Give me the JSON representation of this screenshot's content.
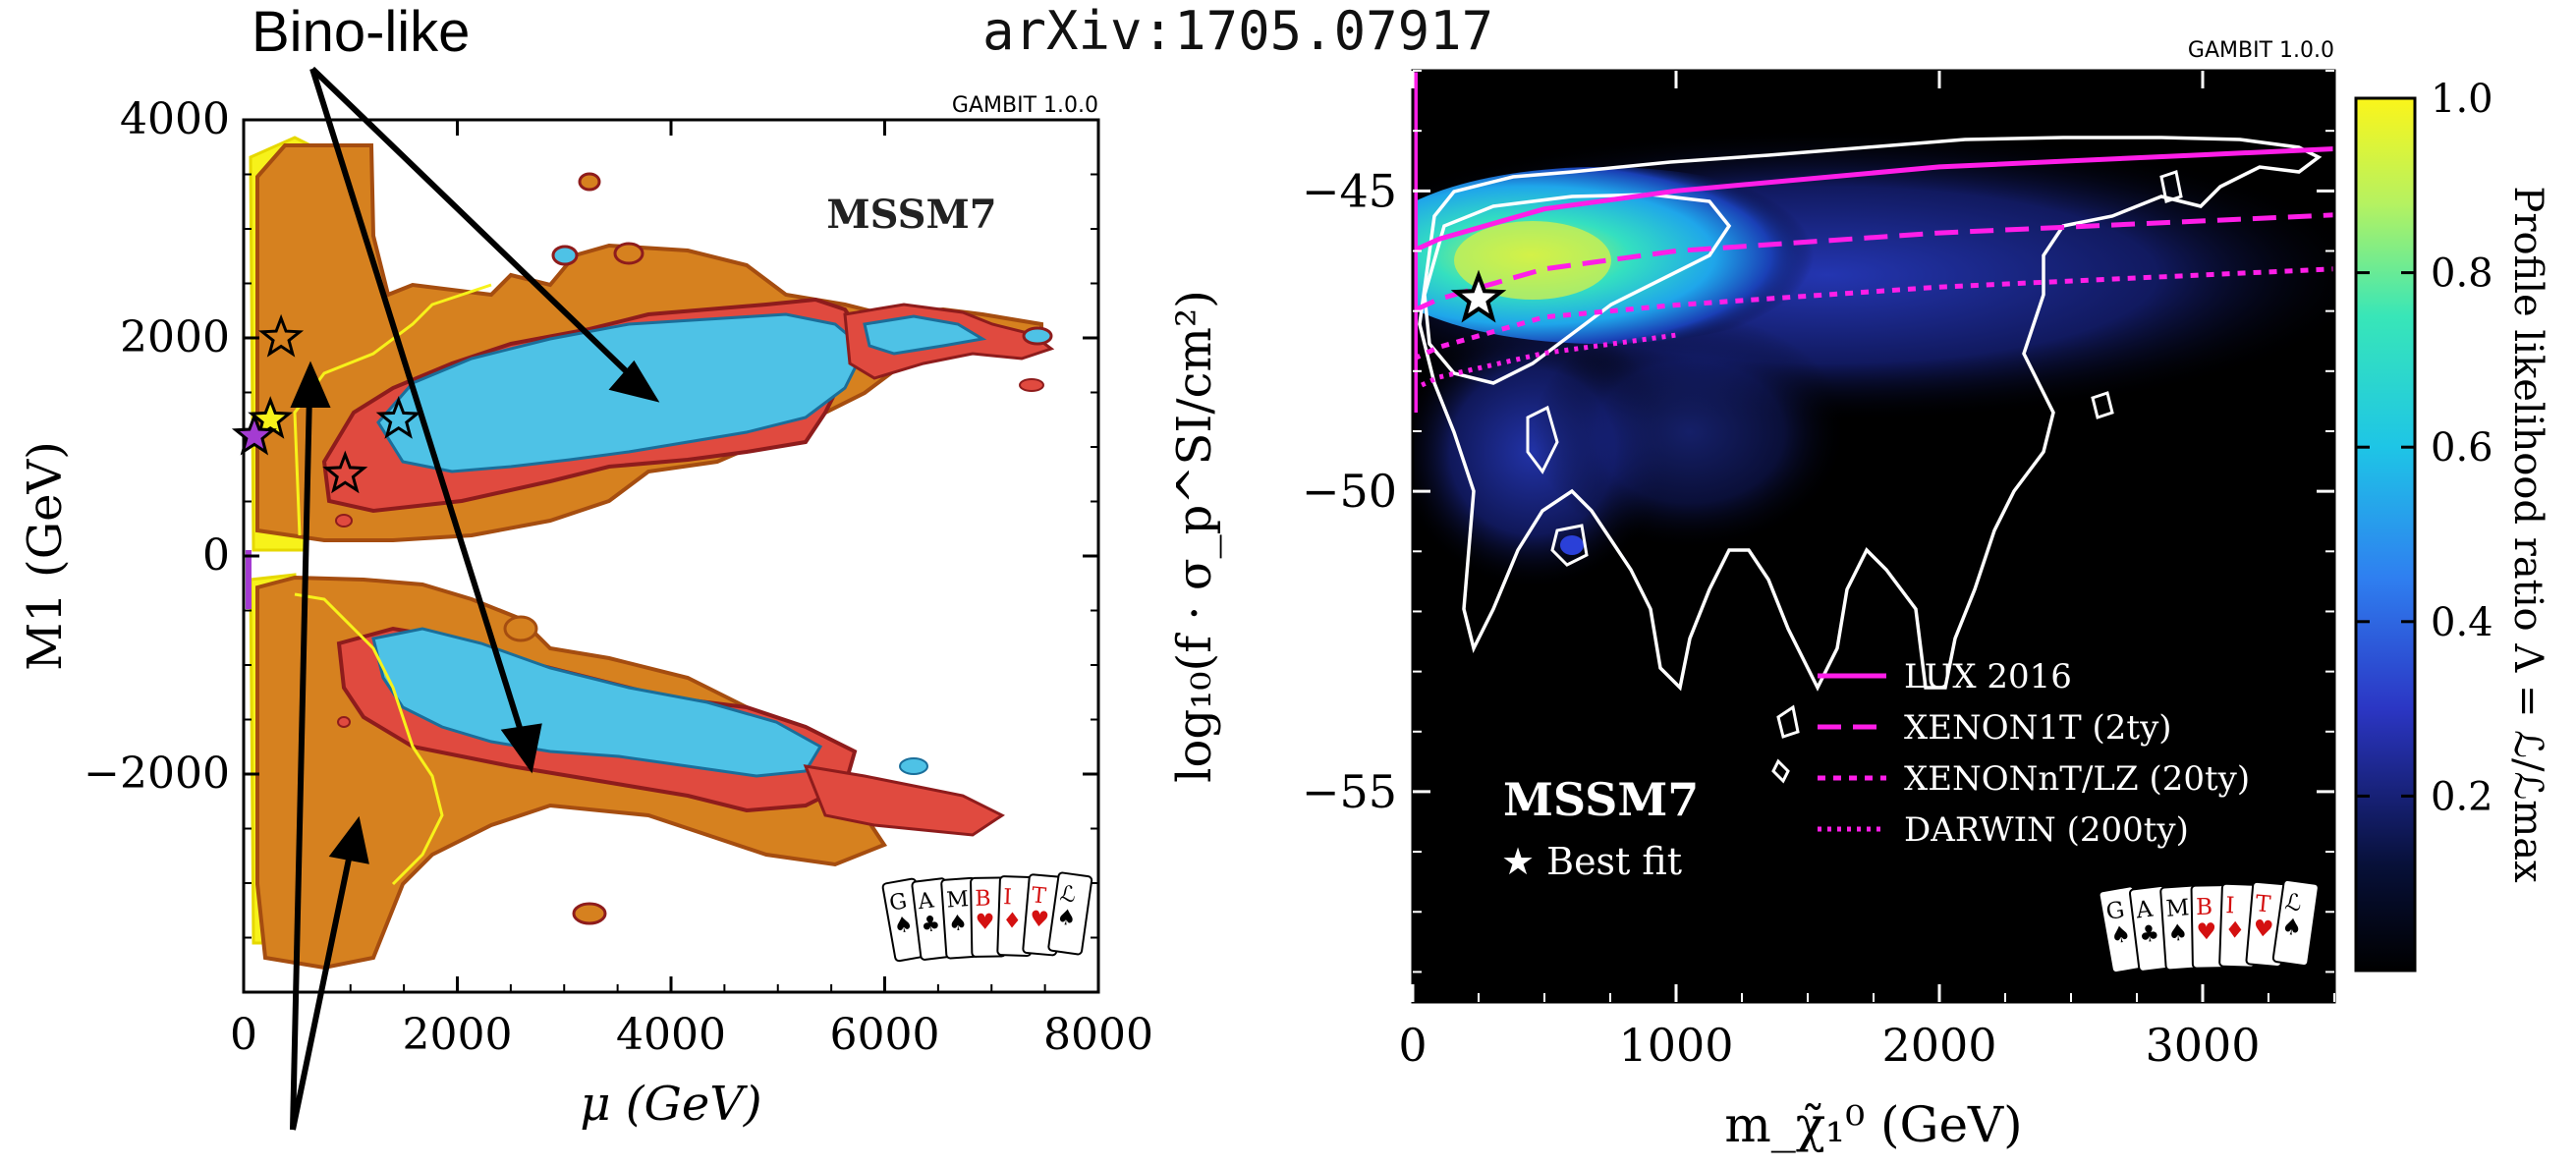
{
  "header": {
    "arxiv": "arXiv:1705.07917",
    "bino_label": "Bino-like"
  },
  "chart_data": [
    {
      "type": "scatter",
      "panel": "left",
      "watermark": "GAMBIT 1.0.0",
      "model_label": "MSSM7",
      "xlabel": "μ (GeV)",
      "ylabel": "M1 (GeV)",
      "xlim": [
        0,
        8000
      ],
      "ylim": [
        -4000,
        4000
      ],
      "xticks": [
        "0",
        "2000",
        "4000",
        "6000",
        "8000"
      ],
      "yticks": [
        "4000",
        "2000",
        "0",
        "−2000"
      ],
      "region_colors": {
        "yellow": "#f7f21a",
        "orange": "#d6811f",
        "red": "#e04a3f",
        "cyan": "#4ec2e6",
        "magenta": "#a43bd2"
      },
      "best_fit_points": [
        {
          "x": 350,
          "y": 2000,
          "color": "#d6811f"
        },
        {
          "x": 250,
          "y": 1250,
          "color": "#f7f21a"
        },
        {
          "x": 1450,
          "y": 1250,
          "color": "#4ec2e6"
        },
        {
          "x": 950,
          "y": 750,
          "color": "#e04a3f"
        },
        {
          "x": 100,
          "y": 1100,
          "color": "#a43bd2"
        }
      ]
    },
    {
      "type": "heatmap",
      "panel": "right",
      "watermark": "GAMBIT 1.0.0",
      "model_label": "MSSM7",
      "best_fit_label": "★ Best fit",
      "xlabel": "m_χ̃₁⁰ (GeV)",
      "ylabel": "log₁₀(f · σ_p^SI/cm²)",
      "xlim": [
        0,
        3500
      ],
      "ylim": [
        -58.5,
        -43
      ],
      "xticks": [
        "0",
        "1000",
        "2000",
        "3000"
      ],
      "yticks": [
        "−45",
        "−50",
        "−55"
      ],
      "best_fit": {
        "x": 250,
        "y": -46.8
      },
      "series": [
        {
          "name": "LUX 2016",
          "style": "solid",
          "color": "#ff1ee8",
          "x": [
            0,
            100,
            500,
            1000,
            2000,
            3000,
            3500
          ],
          "y": [
            -46.0,
            -45.8,
            -45.3,
            -45.0,
            -44.6,
            -44.4,
            -44.3
          ]
        },
        {
          "name": "XENON1T (2ty)",
          "style": "dashed",
          "color": "#ff1ee8",
          "x": [
            0,
            100,
            500,
            1000,
            2000,
            3000,
            3500
          ],
          "y": [
            -47.0,
            -46.8,
            -46.3,
            -46.0,
            -45.7,
            -45.5,
            -45.4
          ]
        },
        {
          "name": "XENONnT/LZ (20ty)",
          "style": "dotted",
          "color": "#ff1ee8",
          "x": [
            0,
            100,
            500,
            1000,
            2000,
            3000,
            3500
          ],
          "y": [
            -47.8,
            -47.6,
            -47.1,
            -46.9,
            -46.6,
            -46.4,
            -46.3
          ]
        },
        {
          "name": "DARWIN (200ty)",
          "style": "densely-dotted",
          "color": "#ff1ee8",
          "x": [
            0,
            100,
            500,
            1000
          ],
          "y": [
            -48.3,
            -48.1,
            -47.7,
            -47.4
          ]
        }
      ],
      "colorbar": {
        "label": "Profile likelihood ratio Λ = ℒ/ℒmax",
        "ticks": [
          "1.0",
          "0.8",
          "0.6",
          "0.4",
          "0.2"
        ],
        "tick_values": [
          1.0,
          0.8,
          0.6,
          0.4,
          0.2
        ]
      }
    }
  ]
}
